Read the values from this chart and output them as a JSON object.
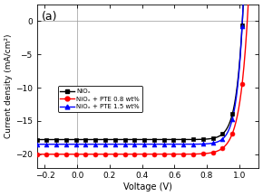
{
  "title": "(a)",
  "xlabel": "Voltage (V)",
  "ylabel": "Current density (mA/cm²)",
  "xlim": [
    -0.25,
    1.12
  ],
  "ylim": [
    -22,
    2.5
  ],
  "xticks": [
    -0.2,
    0.0,
    0.2,
    0.4,
    0.6,
    0.8,
    1.0
  ],
  "yticks": [
    0,
    -5,
    -10,
    -15,
    -20
  ],
  "series": [
    {
      "label": "NiOₓ",
      "color": "#000000",
      "marker": "s",
      "marker_size": 3.0,
      "jsc": -17.8,
      "voc": 1.02,
      "n": 1.55
    },
    {
      "label": "NiOₓ + PTE 0.8 wt%",
      "color": "#ff0000",
      "marker": "o",
      "marker_size": 3.5,
      "jsc": -20.0,
      "voc": 1.05,
      "n": 1.9
    },
    {
      "label": "NiOₓ + PTE 1.5 wt%",
      "color": "#0000ff",
      "marker": "^",
      "marker_size": 3.5,
      "jsc": -18.5,
      "voc": 1.02,
      "n": 1.5
    }
  ],
  "grid_color": "#999999",
  "fig_width": 2.9,
  "fig_height": 2.17,
  "dpi": 100
}
